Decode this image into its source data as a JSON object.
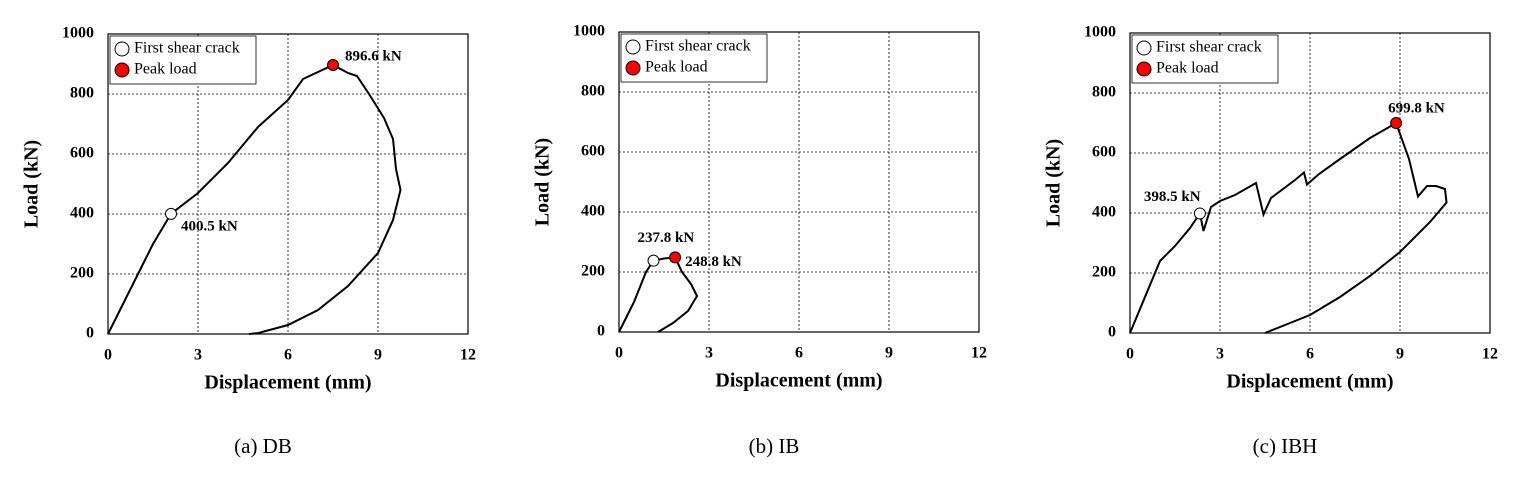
{
  "chart_data": [
    {
      "type": "line",
      "caption": "(a) DB",
      "x_label": "Displacement (mm)",
      "y_label": "Load (kN)",
      "xlim": [
        0,
        12
      ],
      "ylim": [
        0,
        1000
      ],
      "xticks": [
        0,
        3,
        6,
        9,
        12
      ],
      "yticks": [
        0,
        200,
        400,
        600,
        800,
        1000
      ],
      "grid": true,
      "legend": "upper left",
      "series": [
        {
          "color": "#000000",
          "x": [
            0,
            0.5,
            1,
            1.5,
            2.1,
            3,
            4,
            5,
            6,
            6.5,
            7.5,
            8,
            8.3,
            8.7,
            9.2,
            9.5,
            9.6,
            9.75,
            9.5,
            9,
            8,
            7,
            6,
            5,
            4.7
          ],
          "values": [
            0,
            100,
            200,
            300,
            400.5,
            470,
            570,
            690,
            780,
            850,
            896.6,
            870,
            860,
            800,
            720,
            650,
            550,
            480,
            380,
            270,
            160,
            80,
            30,
            3,
            0
          ]
        },
        {
          "name": "First shear crack",
          "color": "#ffffff",
          "x": [
            2.1
          ],
          "values": [
            400.5
          ],
          "value_labels": [
            "400.5 kN"
          ]
        },
        {
          "name": "Peak load",
          "color": "#ff0000",
          "x": [
            7.5
          ],
          "values": [
            896.6
          ],
          "value_labels": [
            "896.6 kN"
          ]
        }
      ]
    },
    {
      "type": "line",
      "caption": "(b) IB",
      "x_label": "Displacement (mm)",
      "y_label": "Load (kN)",
      "xlim": [
        0,
        12
      ],
      "ylim": [
        0,
        1000
      ],
      "xticks": [
        0,
        3,
        6,
        9,
        12
      ],
      "yticks": [
        0,
        200,
        400,
        600,
        800,
        1000
      ],
      "grid": true,
      "legend": "upper left",
      "series": [
        {
          "color": "#000000",
          "x": [
            0,
            0.5,
            0.9,
            1.15,
            1.5,
            1.87,
            2.1,
            2.4,
            2.6,
            2.3,
            1.8,
            1.3
          ],
          "values": [
            0,
            100,
            200,
            237.8,
            245,
            248.8,
            200,
            160,
            120,
            70,
            30,
            0
          ]
        },
        {
          "name": "First shear crack",
          "color": "#ffffff",
          "x": [
            1.15
          ],
          "values": [
            237.8
          ],
          "value_labels": [
            "237.8 kN"
          ]
        },
        {
          "name": "Peak load",
          "color": "#ff0000",
          "x": [
            1.87
          ],
          "values": [
            248.8
          ],
          "value_labels": [
            "248.8 kN"
          ]
        }
      ]
    },
    {
      "type": "line",
      "caption": "(c) IBH",
      "x_label": "Displacement (mm)",
      "y_label": "Load (kN)",
      "xlim": [
        0,
        12
      ],
      "ylim": [
        0,
        1000
      ],
      "xticks": [
        0,
        3,
        6,
        9,
        12
      ],
      "yticks": [
        0,
        200,
        400,
        600,
        800,
        1000
      ],
      "grid": true,
      "legend": "upper left",
      "series": [
        {
          "color": "#000000",
          "x": [
            0,
            0.5,
            1,
            1.5,
            2,
            2.33,
            2.45,
            2.7,
            3,
            3.5,
            4.2,
            4.45,
            4.7,
            5.5,
            5.8,
            5.9,
            6.3,
            7,
            8,
            8.87,
            9.3,
            9.6,
            9.9,
            10.2,
            10.5,
            10.55,
            10,
            9,
            8,
            7,
            6,
            5,
            4.5
          ],
          "values": [
            0,
            120,
            240,
            290,
            350,
            398.5,
            340,
            420,
            440,
            460,
            500,
            395,
            450,
            510,
            535,
            495,
            530,
            580,
            650,
            699.8,
            580,
            455,
            490,
            490,
            480,
            435,
            370,
            270,
            190,
            120,
            60,
            20,
            0
          ]
        },
        {
          "name": "First shear crack",
          "color": "#ffffff",
          "x": [
            2.33
          ],
          "values": [
            398.5
          ],
          "value_labels": [
            "398.5 kN"
          ]
        },
        {
          "name": "Peak load",
          "color": "#ff0000",
          "x": [
            8.87
          ],
          "values": [
            699.8
          ],
          "value_labels": [
            "699.8 kN"
          ]
        }
      ]
    }
  ]
}
